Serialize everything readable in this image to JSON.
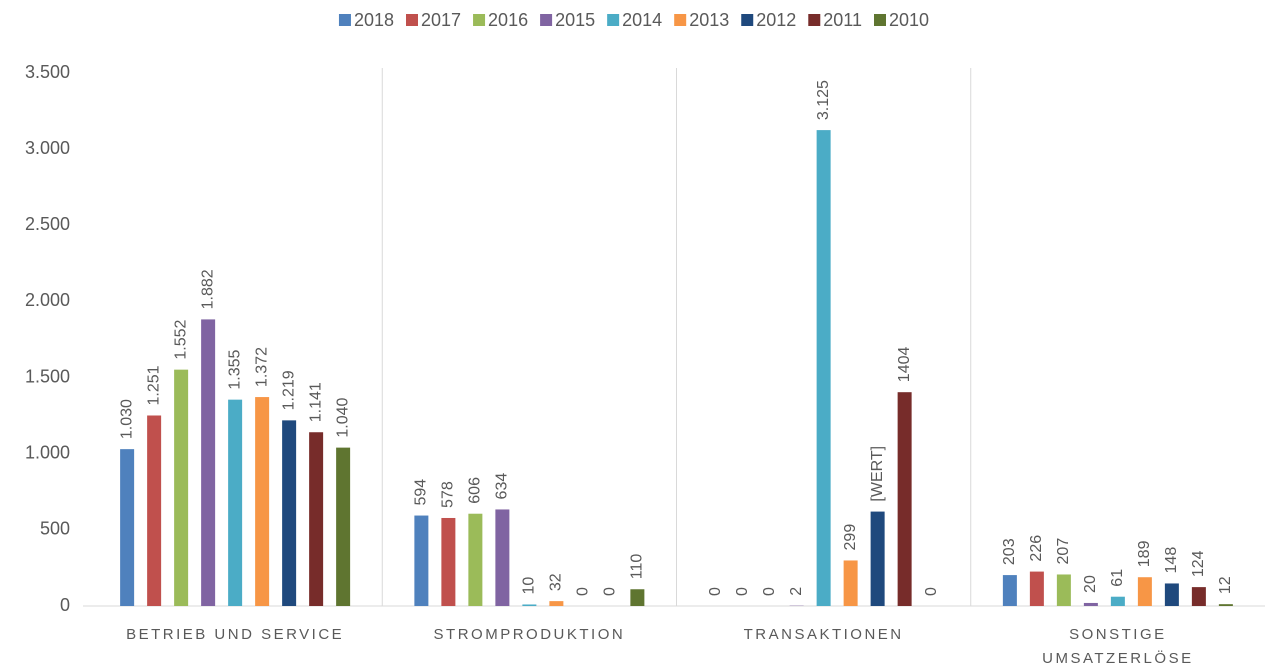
{
  "chart_data": {
    "type": "bar",
    "categories": [
      "BETRIEB UND SERVICE",
      "STROMPRODUKTION",
      "TRANSAKTIONEN",
      "SONSTIGE UMSATZERLÖSE"
    ],
    "series": [
      {
        "name": "2018",
        "color": "#4f81bd",
        "values": [
          1030,
          594,
          0,
          203
        ],
        "value_labels": [
          "1.030",
          "594",
          "0",
          "203"
        ]
      },
      {
        "name": "2017",
        "color": "#c0504d",
        "values": [
          1251,
          578,
          0,
          226
        ],
        "value_labels": [
          "1.251",
          "578",
          "0",
          "226"
        ]
      },
      {
        "name": "2016",
        "color": "#9bbb59",
        "values": [
          1552,
          606,
          0,
          207
        ],
        "value_labels": [
          "1.552",
          "606",
          "0",
          "207"
        ]
      },
      {
        "name": "2015",
        "color": "#8064a2",
        "values": [
          1882,
          634,
          2,
          20
        ],
        "value_labels": [
          "1.882",
          "634",
          "2",
          "20"
        ]
      },
      {
        "name": "2014",
        "color": "#4bacc6",
        "values": [
          1355,
          10,
          3125,
          61
        ],
        "value_labels": [
          "1.355",
          "10",
          "3.125",
          "61"
        ]
      },
      {
        "name": "2013",
        "color": "#f79646",
        "values": [
          1372,
          32,
          299,
          189
        ],
        "value_labels": [
          "1.372",
          "32",
          "299",
          "189"
        ]
      },
      {
        "name": "2012",
        "color": "#1f497d",
        "values": [
          1219,
          0,
          620,
          148
        ],
        "value_labels": [
          "1.219",
          "0",
          "[WERT]",
          "148"
        ]
      },
      {
        "name": "2011",
        "color": "#772c2a",
        "values": [
          1141,
          0,
          1404,
          124
        ],
        "value_labels": [
          "1.141",
          "0",
          "1404",
          "124"
        ]
      },
      {
        "name": "2010",
        "color": "#5f7530",
        "values": [
          1040,
          110,
          0,
          12
        ],
        "value_labels": [
          "1.040",
          "110",
          "0",
          "12"
        ]
      }
    ],
    "ylim": [
      0,
      3500
    ],
    "yticks": [
      0,
      500,
      {
        "value": 1000,
        "label": "1.000"
      },
      {
        "value": 1500,
        "label": "1.500"
      },
      {
        "value": 2000,
        "label": "2.000"
      },
      {
        "value": 2500,
        "label": "2.500"
      },
      {
        "value": 3000,
        "label": "3.000"
      },
      {
        "value": 3500,
        "label": "3.500"
      }
    ],
    "grid": false,
    "legend": "top"
  }
}
